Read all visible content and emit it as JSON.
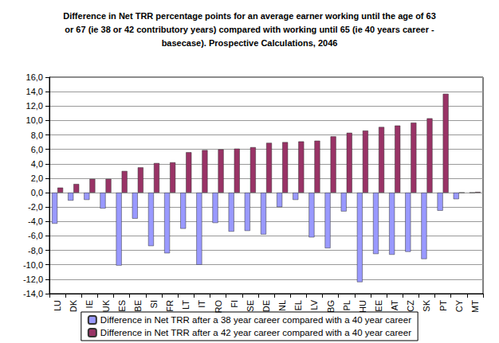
{
  "chart_data": {
    "type": "bar",
    "title": "Difference in Net TRR percentage points for an average earner working until the age of 63 or 67 (ie 38 or 42 contributory years) compared with working until 65 (ie 40 years career - basecase). Prospective Calculations, 2046",
    "categories": [
      "LU",
      "DK",
      "IE",
      "UK",
      "ES",
      "BE",
      "SI",
      "FR",
      "LT",
      "IT",
      "RO",
      "FI",
      "SE",
      "DE",
      "NL",
      "EL",
      "LV",
      "BG",
      "PL",
      "HU",
      "EE",
      "AT",
      "CZ",
      "SK",
      "PT",
      "CY",
      "MT"
    ],
    "series": [
      {
        "name": "Difference in Net TRR after a 38 year career compared with a 40 year career",
        "color": "#9999ff",
        "values": [
          -4.3,
          -1.1,
          -1.0,
          -2.2,
          -10.1,
          -3.6,
          -7.4,
          -8.4,
          -5.0,
          -10.0,
          -4.2,
          -5.4,
          -5.3,
          -5.8,
          -2.0,
          -1.0,
          -6.2,
          -7.7,
          -2.6,
          -12.4,
          -8.5,
          -8.6,
          -8.2,
          -9.2,
          -2.5,
          -0.9,
          0
        ]
      },
      {
        "name": "Difference in Net TRR after a 42 year career compared with a 40 year career",
        "color": "#993366",
        "values": [
          0.7,
          1.2,
          1.9,
          1.9,
          3.0,
          3.5,
          4.1,
          4.2,
          5.6,
          5.9,
          6.0,
          6.1,
          6.3,
          6.9,
          7.0,
          7.1,
          7.2,
          7.8,
          8.3,
          8.6,
          9.1,
          9.3,
          9.7,
          10.3,
          13.7,
          0,
          0.1
        ]
      }
    ],
    "ylim": [
      -14,
      16
    ],
    "yticks": [
      {
        "value": -14,
        "label": "-14,0"
      },
      {
        "value": -12,
        "label": "-12,0"
      },
      {
        "value": -10,
        "label": "-10,0"
      },
      {
        "value": -8,
        "label": "-8,0"
      },
      {
        "value": -6,
        "label": "-6,0"
      },
      {
        "value": -4,
        "label": "-4,0"
      },
      {
        "value": -2,
        "label": "-2,0"
      },
      {
        "value": 0,
        "label": "0,0"
      },
      {
        "value": 2,
        "label": "2,0"
      },
      {
        "value": 4,
        "label": "4,0"
      },
      {
        "value": 6,
        "label": "6,0"
      },
      {
        "value": 8,
        "label": "8,0"
      },
      {
        "value": 10,
        "label": "10,0"
      },
      {
        "value": 12,
        "label": "12,0"
      },
      {
        "value": 14,
        "label": "14,0"
      },
      {
        "value": 16,
        "label": "16,0"
      }
    ],
    "grid": true,
    "legend": "bottom",
    "data_labels": false
  }
}
